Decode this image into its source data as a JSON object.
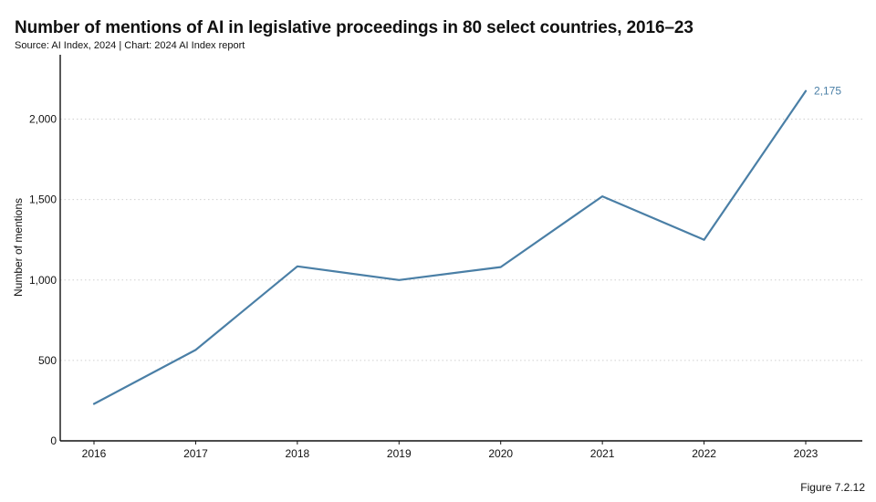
{
  "chart_data": {
    "type": "line",
    "title": "Number of mentions of AI in legislative proceedings in 80 select countries, 2016–23",
    "subtitle": "Source: AI Index, 2024 | Chart: 2024 AI Index report",
    "ylabel": "Number of mentions",
    "xlabel": "",
    "categories": [
      "2016",
      "2017",
      "2018",
      "2019",
      "2020",
      "2021",
      "2022",
      "2023"
    ],
    "series": [
      {
        "values": [
          230,
          565,
          1085,
          1000,
          1080,
          1520,
          1250,
          2175
        ],
        "color": "#4a7fa6"
      }
    ],
    "ylim": [
      0,
      2350
    ],
    "yticks": [
      0,
      500,
      1000,
      1500,
      2000
    ],
    "ytick_labels": [
      "0",
      "500",
      "1,000",
      "1,500",
      "2,000"
    ],
    "data_labels": [
      {
        "index": 7,
        "text": "2,175"
      }
    ],
    "grid": "horizontal-dotted",
    "legend": "none"
  },
  "figure_label": "Figure 7.2.12"
}
